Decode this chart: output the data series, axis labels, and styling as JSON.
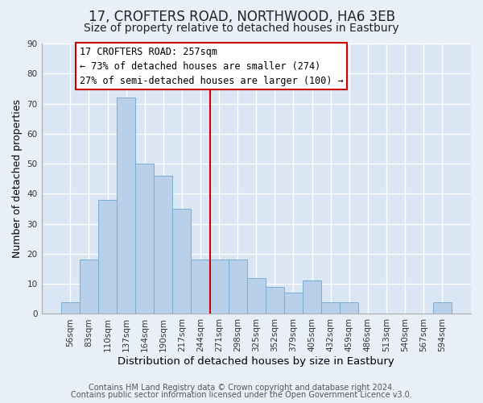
{
  "title": "17, CROFTERS ROAD, NORTHWOOD, HA6 3EB",
  "subtitle": "Size of property relative to detached houses in Eastbury",
  "xlabel": "Distribution of detached houses by size in Eastbury",
  "ylabel": "Number of detached properties",
  "bar_labels": [
    "56sqm",
    "83sqm",
    "110sqm",
    "137sqm",
    "164sqm",
    "190sqm",
    "217sqm",
    "244sqm",
    "271sqm",
    "298sqm",
    "325sqm",
    "352sqm",
    "379sqm",
    "405sqm",
    "432sqm",
    "459sqm",
    "486sqm",
    "513sqm",
    "540sqm",
    "567sqm",
    "594sqm"
  ],
  "bar_heights": [
    4,
    18,
    38,
    72,
    50,
    46,
    35,
    18,
    18,
    18,
    12,
    9,
    7,
    11,
    4,
    4,
    0,
    0,
    0,
    0,
    4
  ],
  "bar_color": "#b8d0ea",
  "bar_edge_color": "#7aadd4",
  "vline_x": 7.5,
  "vline_color": "#cc0000",
  "annotation_title": "17 CROFTERS ROAD: 257sqm",
  "annotation_line1": "← 73% of detached houses are smaller (274)",
  "annotation_line2": "27% of semi-detached houses are larger (100) →",
  "annotation_box_facecolor": "#ffffff",
  "annotation_box_edgecolor": "#cc0000",
  "ylim": [
    0,
    90
  ],
  "yticks": [
    0,
    10,
    20,
    30,
    40,
    50,
    60,
    70,
    80,
    90
  ],
  "footer1": "Contains HM Land Registry data © Crown copyright and database right 2024.",
  "footer2": "Contains public sector information licensed under the Open Government Licence v3.0.",
  "fig_background_color": "#e8eff8",
  "plot_background_color": "#dae6f3",
  "grid_color": "#ffffff",
  "title_fontsize": 12,
  "subtitle_fontsize": 10,
  "xlabel_fontsize": 9.5,
  "ylabel_fontsize": 9,
  "tick_fontsize": 7.5,
  "annotation_fontsize": 8.5,
  "footer_fontsize": 7
}
